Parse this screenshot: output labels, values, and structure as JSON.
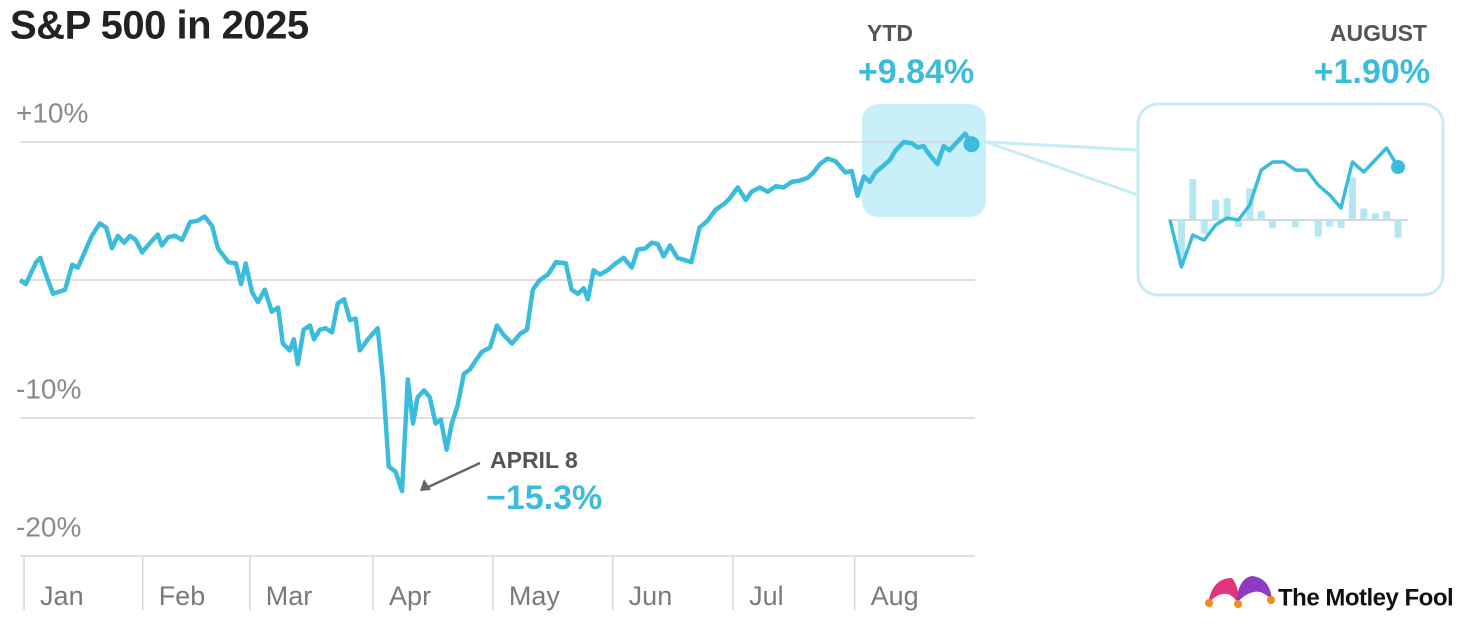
{
  "chart_data": {
    "type": "line",
    "title": "S&P 500 in 2025",
    "color": "#3cbcdc",
    "x": [
      0.0,
      1.0,
      2.8,
      3.5,
      4.3,
      5.7,
      7.8,
      9.0,
      10.0,
      12.4,
      13.8,
      14.9,
      15.9,
      16.9,
      18.0,
      19.0,
      20.0,
      21.1,
      22.5,
      23.8,
      24.5,
      25.6,
      26.8,
      28.0,
      29.4,
      30.7,
      31.9,
      33.2,
      34.2,
      36.0,
      37.3,
      38.2,
      39.0,
      40.1,
      41.1,
      42.3,
      43.5,
      44.6,
      45.4,
      46.6,
      47.3,
      48.0,
      49.0,
      50.1,
      50.8,
      51.8,
      52.8,
      53.9,
      54.9,
      56.0,
      57.0,
      58.0,
      58.7,
      60.1,
      61.8,
      62.7,
      63.7,
      64.9,
      66.0,
      67.0,
      67.9,
      68.7,
      69.8,
      70.8,
      71.8,
      72.7,
      73.7,
      74.6,
      75.6,
      76.7,
      77.7,
      78.8,
      79.8,
      81.2,
      82.4,
      83.6,
      85.0,
      86.4,
      87.6,
      88.6,
      89.8,
      91.2,
      92.6,
      94.3,
      95.3,
      96.4,
      97.4,
      98.1,
      99.1,
      100.2,
      101.5,
      102.9,
      104.3,
      105.7,
      106.7,
      108.1,
      109.1,
      110.2,
      111.2,
      112.3,
      113.6,
      116.0,
      117.4,
      118.8,
      120.2,
      121.6,
      122.6,
      124.0,
      125.4,
      126.4,
      127.8,
      129.2,
      130.6,
      131.9,
      133.3,
      134.7,
      136.1,
      137.1,
      138.2,
      139.5,
      140.9,
      142.6,
      143.7,
      144.7,
      145.8,
      146.8,
      147.8,
      149.2,
      150.3,
      151.3,
      152.7,
      154.1,
      155.1,
      156.1,
      157.1,
      158.5,
      159.6,
      160.6,
      161.9,
      163.3,
      164.4
    ],
    "values": [
      0,
      -0.3,
      1.3,
      1.6,
      0.6,
      -1,
      -0.7,
      1.1,
      0.9,
      3.2,
      4.1,
      3.8,
      2.3,
      3.2,
      2.7,
      3.2,
      2.9,
      2,
      2.7,
      3.3,
      2.5,
      3.1,
      3.2,
      2.9,
      4.2,
      4.3,
      4.6,
      3.9,
      2.3,
      1.3,
      1.2,
      -0.3,
      1.2,
      -0.9,
      -1.6,
      -0.7,
      -2.3,
      -2,
      -4.6,
      -5.1,
      -4.3,
      -6.1,
      -3.6,
      -3.3,
      -4.3,
      -3.6,
      -3.5,
      -3.8,
      -1.7,
      -1.4,
      -2.9,
      -2.8,
      -5.1,
      -4.3,
      -3.5,
      -7.2,
      -13.5,
      -13.9,
      -15.3,
      -7.2,
      -10.4,
      -8.5,
      -8,
      -8.5,
      -10.4,
      -10.1,
      -12.3,
      -10.4,
      -9.1,
      -6.8,
      -6.5,
      -5.8,
      -5.2,
      -4.9,
      -3.3,
      -4,
      -4.6,
      -3.9,
      -3.6,
      -0.7,
      0,
      0.4,
      1.3,
      1.2,
      -0.7,
      -1,
      -0.6,
      -1.4,
      0.7,
      0.4,
      0.7,
      1.2,
      1.6,
      0.9,
      2.2,
      2.3,
      2.7,
      2.6,
      1.7,
      2.5,
      1.6,
      1.3,
      3.8,
      4.3,
      5.1,
      5.5,
      5.9,
      6.7,
      5.8,
      6.4,
      6.7,
      6.4,
      6.8,
      6.7,
      7.1,
      7.2,
      7.4,
      7.8,
      8.4,
      8.8,
      8.6,
      7.8,
      7.9,
      6.1,
      7.5,
      7.1,
      7.8,
      8.3,
      8.7,
      9.4,
      10,
      9.9,
      9.6,
      9.7,
      9.1,
      8.4,
      9.7,
      9.4,
      10,
      10.6,
      9.84
    ],
    "xlim": [
      0,
      165
    ],
    "xticks": [
      {
        "value": 0.7,
        "label": "Jan"
      },
      {
        "value": 21.2,
        "label": "Feb"
      },
      {
        "value": 39.7,
        "label": "Mar"
      },
      {
        "value": 61.0,
        "label": "Apr"
      },
      {
        "value": 81.7,
        "label": "May"
      },
      {
        "value": 102.4,
        "label": "Jun"
      },
      {
        "value": 123.2,
        "label": "Jul"
      },
      {
        "value": 144.2,
        "label": "Aug"
      }
    ],
    "ylim": [
      -20,
      12
    ],
    "yticks": [
      {
        "value": 10,
        "label": "+10%"
      },
      {
        "value": 0,
        "label": null
      },
      {
        "value": -10,
        "label": "-10%"
      },
      {
        "value": -20,
        "label": "-20%"
      }
    ],
    "grid": true,
    "annotations": {
      "ytd": {
        "label": "YTD",
        "text": "+9.84%"
      },
      "low": {
        "label": "APRIL 8",
        "text": "−15.3%"
      }
    },
    "inset": {
      "label": "AUGUST",
      "text": "+1.90%",
      "values": [
        0,
        -1.68,
        -0.54,
        -0.72,
        -0.18,
        0.07,
        0,
        0.54,
        1.79,
        2.08,
        2.08,
        1.79,
        1.79,
        1.25,
        0.9,
        0.43,
        2.08,
        1.72,
        2.15,
        2.58,
        1.9
      ],
      "bars": [
        null,
        -1.6,
        1.47,
        -0.49,
        0.73,
        0.78,
        -0.25,
        1.13,
        0.32,
        -0.29,
        -0.04,
        -0.26,
        -0.01,
        -0.59,
        -0.24,
        -0.29,
        1.52,
        0.41,
        0.24,
        0.32,
        -0.64
      ],
      "ylim": [
        -2,
        3
      ],
      "color": "#3cbcdc",
      "bar_color": "#b5e6f3"
    }
  },
  "logo": "The Motley Fool"
}
